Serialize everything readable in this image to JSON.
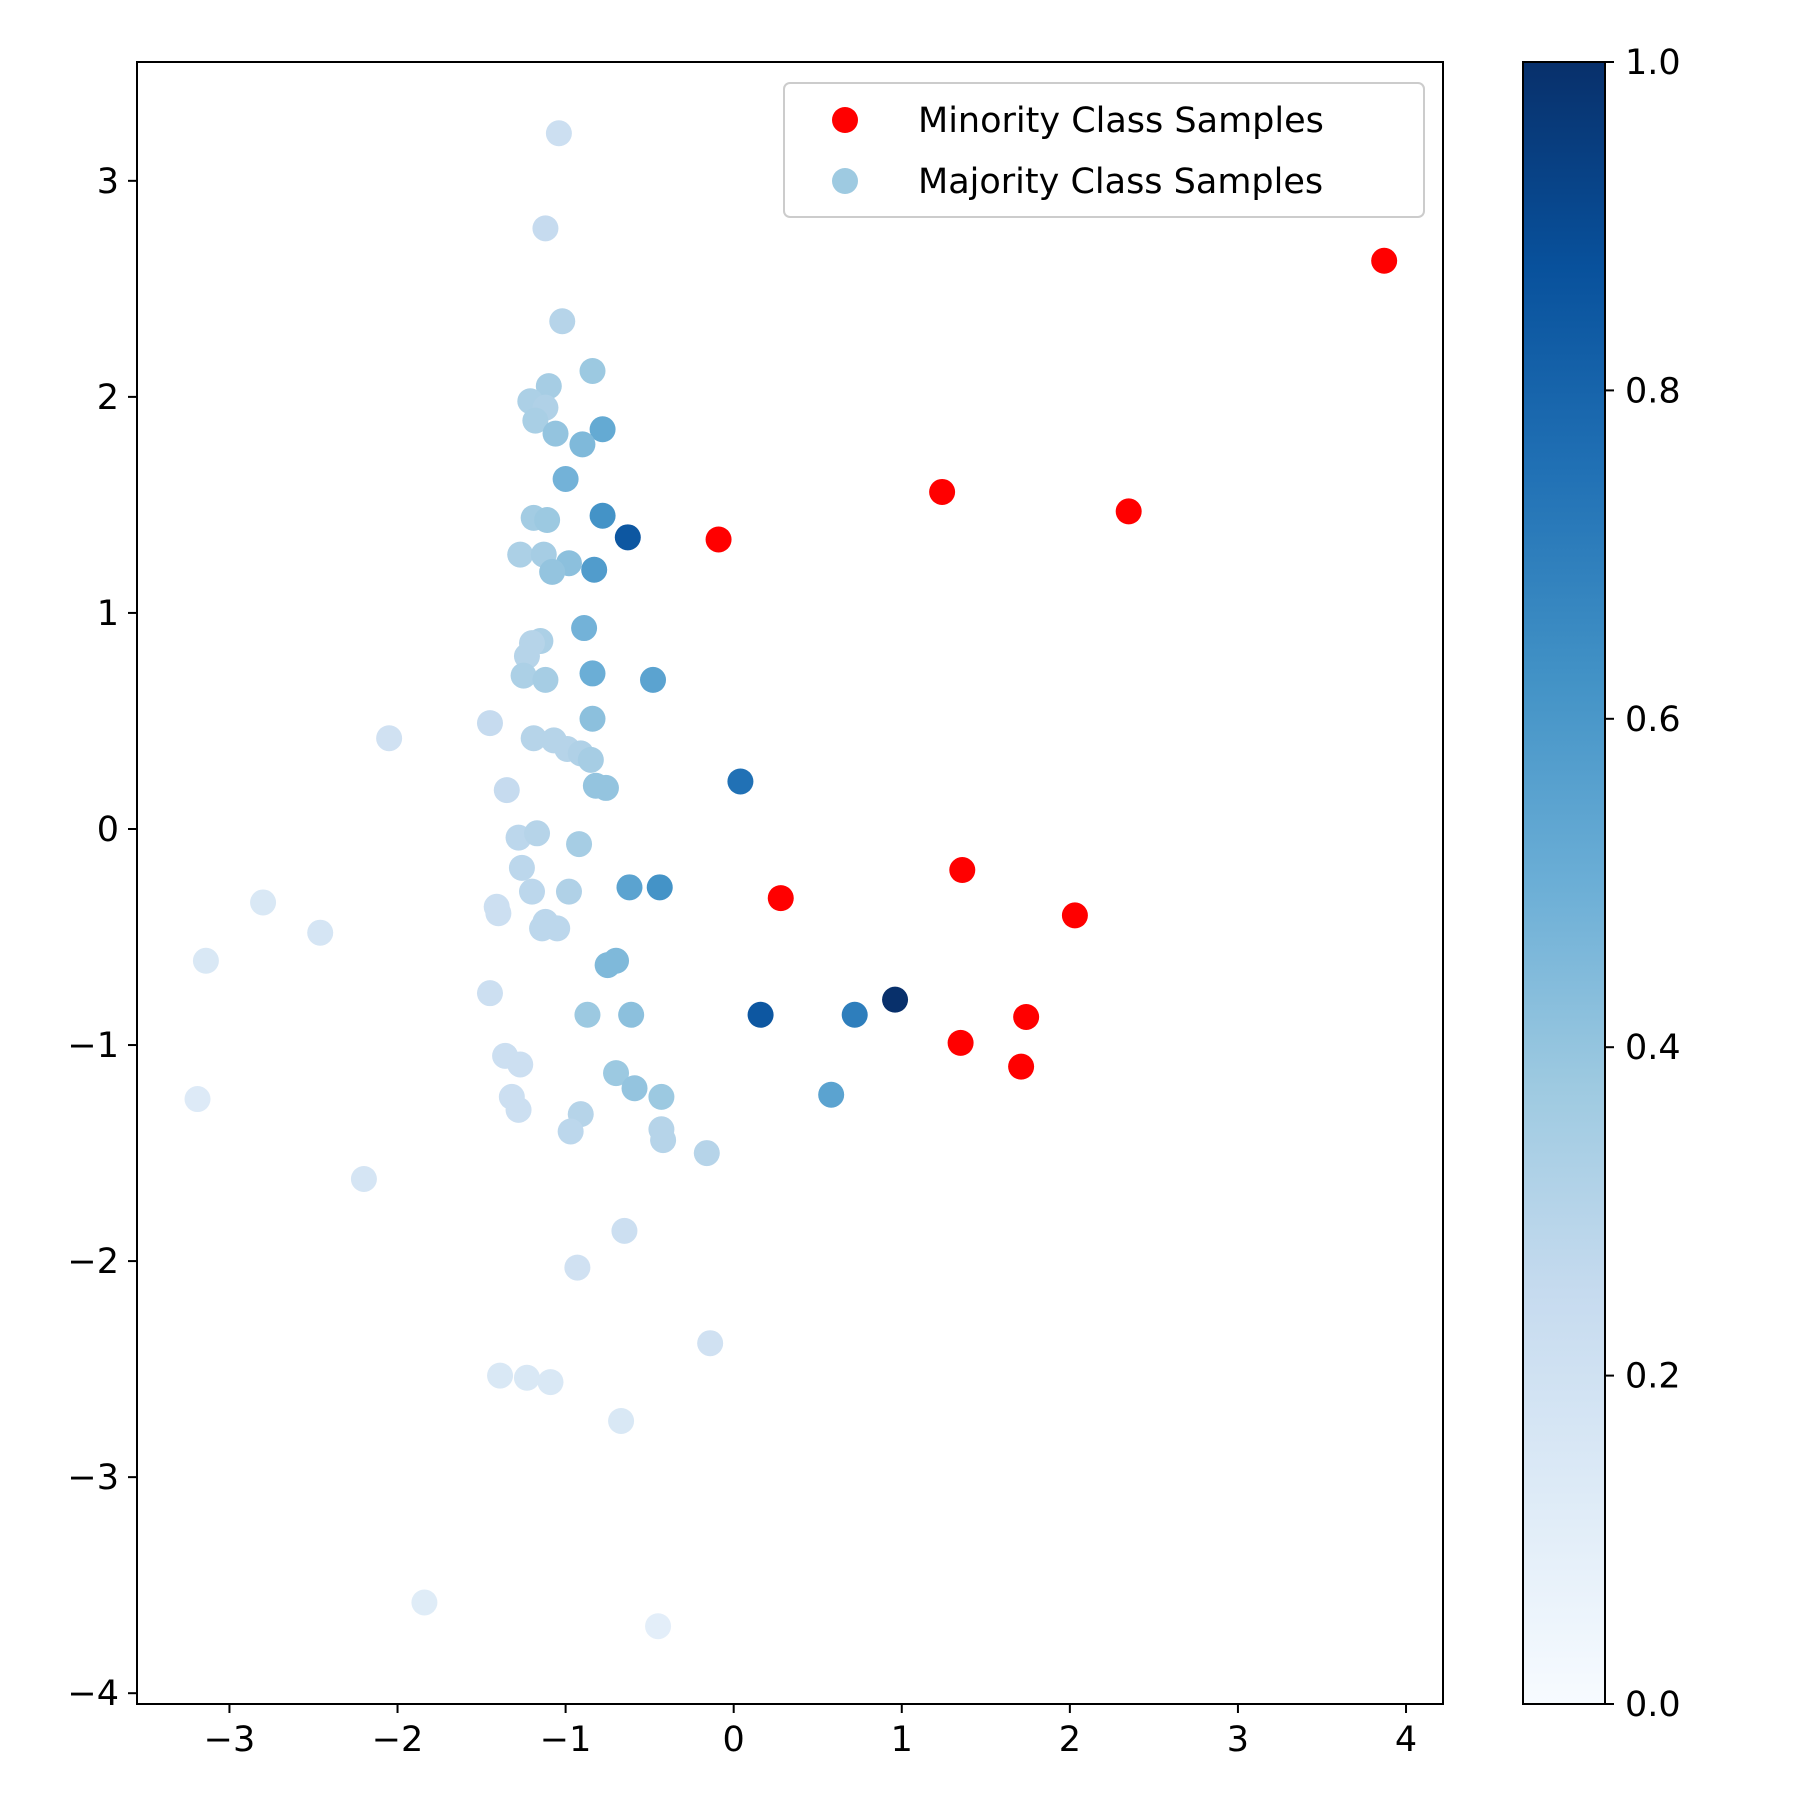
{
  "chart_data": {
    "type": "scatter",
    "title": "",
    "xlabel": "",
    "ylabel": "",
    "xlim": [
      -3.55,
      4.22
    ],
    "ylim": [
      -4.05,
      3.55
    ],
    "xticks": [
      -3,
      -2,
      -1,
      0,
      1,
      2,
      3,
      4
    ],
    "yticks": [
      -4,
      -3,
      -2,
      -1,
      0,
      1,
      2,
      3
    ],
    "xtick_labels": [
      "−3",
      "−2",
      "−1",
      "0",
      "1",
      "2",
      "3",
      "4"
    ],
    "ytick_labels": [
      "−4",
      "−3",
      "−2",
      "−1",
      "0",
      "1",
      "2",
      "3"
    ],
    "grid": false,
    "legend": {
      "placement": "upper right",
      "entries": [
        {
          "label": "Minority Class Samples",
          "color": "#ff0000"
        },
        {
          "label": "Majority Class Samples",
          "color": "#9ecae1"
        }
      ]
    },
    "colorbar": {
      "cmap": "Blues",
      "range": [
        0.0,
        1.0
      ],
      "ticks": [
        0.0,
        0.2,
        0.4,
        0.6,
        0.8,
        1.0
      ],
      "tick_labels": [
        "0.0",
        "0.2",
        "0.4",
        "0.6",
        "0.8",
        "1.0"
      ]
    },
    "series": [
      {
        "name": "Minority Class Samples",
        "color": "#ff0000",
        "points": [
          {
            "x": 3.87,
            "y": 2.63
          },
          {
            "x": 1.24,
            "y": 1.56
          },
          {
            "x": 2.35,
            "y": 1.47
          },
          {
            "x": -0.09,
            "y": 1.34
          },
          {
            "x": 1.36,
            "y": -0.19
          },
          {
            "x": 0.28,
            "y": -0.32
          },
          {
            "x": 2.03,
            "y": -0.4
          },
          {
            "x": 1.74,
            "y": -0.87
          },
          {
            "x": 1.35,
            "y": -0.99
          },
          {
            "x": 1.71,
            "y": -1.1
          }
        ]
      },
      {
        "name": "Majority Class Samples",
        "color": "#9ecae1",
        "points": [
          {
            "x": -1.04,
            "y": 3.22,
            "c": 0.22
          },
          {
            "x": -1.12,
            "y": 2.78,
            "c": 0.25
          },
          {
            "x": -1.02,
            "y": 2.35,
            "c": 0.3
          },
          {
            "x": -0.84,
            "y": 2.12,
            "c": 0.38
          },
          {
            "x": -1.1,
            "y": 2.05,
            "c": 0.35
          },
          {
            "x": -1.21,
            "y": 1.98,
            "c": 0.33
          },
          {
            "x": -1.12,
            "y": 1.95,
            "c": 0.32
          },
          {
            "x": -1.18,
            "y": 1.89,
            "c": 0.34
          },
          {
            "x": -1.06,
            "y": 1.83,
            "c": 0.4
          },
          {
            "x": -0.78,
            "y": 1.85,
            "c": 0.52
          },
          {
            "x": -0.9,
            "y": 1.78,
            "c": 0.45
          },
          {
            "x": -1.0,
            "y": 1.62,
            "c": 0.48
          },
          {
            "x": -0.78,
            "y": 1.45,
            "c": 0.62
          },
          {
            "x": -0.63,
            "y": 1.35,
            "c": 0.85
          },
          {
            "x": -1.19,
            "y": 1.44,
            "c": 0.36
          },
          {
            "x": -1.11,
            "y": 1.43,
            "c": 0.38
          },
          {
            "x": -1.27,
            "y": 1.27,
            "c": 0.33
          },
          {
            "x": -1.13,
            "y": 1.27,
            "c": 0.35
          },
          {
            "x": -0.98,
            "y": 1.23,
            "c": 0.42
          },
          {
            "x": -1.08,
            "y": 1.19,
            "c": 0.4
          },
          {
            "x": -0.83,
            "y": 1.2,
            "c": 0.58
          },
          {
            "x": -0.89,
            "y": 0.93,
            "c": 0.48
          },
          {
            "x": -1.15,
            "y": 0.87,
            "c": 0.33
          },
          {
            "x": -1.2,
            "y": 0.86,
            "c": 0.3
          },
          {
            "x": -1.23,
            "y": 0.8,
            "c": 0.3
          },
          {
            "x": -0.84,
            "y": 0.72,
            "c": 0.5
          },
          {
            "x": -0.48,
            "y": 0.69,
            "c": 0.55
          },
          {
            "x": -1.25,
            "y": 0.71,
            "c": 0.33
          },
          {
            "x": -1.12,
            "y": 0.69,
            "c": 0.35
          },
          {
            "x": -0.84,
            "y": 0.51,
            "c": 0.42
          },
          {
            "x": -1.45,
            "y": 0.49,
            "c": 0.25
          },
          {
            "x": -2.05,
            "y": 0.42,
            "c": 0.2
          },
          {
            "x": -1.19,
            "y": 0.42,
            "c": 0.3
          },
          {
            "x": -1.07,
            "y": 0.41,
            "c": 0.3
          },
          {
            "x": -0.99,
            "y": 0.37,
            "c": 0.3
          },
          {
            "x": -0.91,
            "y": 0.35,
            "c": 0.32
          },
          {
            "x": -0.85,
            "y": 0.32,
            "c": 0.35
          },
          {
            "x": 0.04,
            "y": 0.22,
            "c": 0.75
          },
          {
            "x": -0.82,
            "y": 0.2,
            "c": 0.4
          },
          {
            "x": -0.76,
            "y": 0.19,
            "c": 0.4
          },
          {
            "x": -1.35,
            "y": 0.18,
            "c": 0.25
          },
          {
            "x": -1.28,
            "y": -0.04,
            "c": 0.28
          },
          {
            "x": -1.17,
            "y": -0.02,
            "c": 0.3
          },
          {
            "x": -0.92,
            "y": -0.07,
            "c": 0.35
          },
          {
            "x": -1.26,
            "y": -0.18,
            "c": 0.28
          },
          {
            "x": -0.62,
            "y": -0.27,
            "c": 0.55
          },
          {
            "x": -0.44,
            "y": -0.27,
            "c": 0.62
          },
          {
            "x": -1.2,
            "y": -0.29,
            "c": 0.28
          },
          {
            "x": -0.98,
            "y": -0.29,
            "c": 0.32
          },
          {
            "x": -2.8,
            "y": -0.34,
            "c": 0.15
          },
          {
            "x": -1.41,
            "y": -0.36,
            "c": 0.22
          },
          {
            "x": -1.4,
            "y": -0.39,
            "c": 0.22
          },
          {
            "x": -1.12,
            "y": -0.43,
            "c": 0.28
          },
          {
            "x": -2.46,
            "y": -0.48,
            "c": 0.17
          },
          {
            "x": -1.14,
            "y": -0.46,
            "c": 0.28
          },
          {
            "x": -1.05,
            "y": -0.46,
            "c": 0.28
          },
          {
            "x": -3.14,
            "y": -0.61,
            "c": 0.15
          },
          {
            "x": -0.7,
            "y": -0.61,
            "c": 0.45
          },
          {
            "x": -0.75,
            "y": -0.63,
            "c": 0.45
          },
          {
            "x": -1.45,
            "y": -0.76,
            "c": 0.22
          },
          {
            "x": 0.96,
            "y": -0.79,
            "c": 1.0
          },
          {
            "x": -0.87,
            "y": -0.86,
            "c": 0.38
          },
          {
            "x": -0.61,
            "y": -0.86,
            "c": 0.42
          },
          {
            "x": 0.16,
            "y": -0.86,
            "c": 0.85
          },
          {
            "x": 0.72,
            "y": -0.86,
            "c": 0.7
          },
          {
            "x": -1.36,
            "y": -1.05,
            "c": 0.22
          },
          {
            "x": -1.27,
            "y": -1.09,
            "c": 0.22
          },
          {
            "x": -0.7,
            "y": -1.13,
            "c": 0.38
          },
          {
            "x": -0.59,
            "y": -1.2,
            "c": 0.4
          },
          {
            "x": 0.58,
            "y": -1.23,
            "c": 0.55
          },
          {
            "x": -0.43,
            "y": -1.24,
            "c": 0.38
          },
          {
            "x": -1.32,
            "y": -1.24,
            "c": 0.22
          },
          {
            "x": -3.19,
            "y": -1.25,
            "c": 0.13
          },
          {
            "x": -1.28,
            "y": -1.3,
            "c": 0.22
          },
          {
            "x": -0.91,
            "y": -1.32,
            "c": 0.3
          },
          {
            "x": -0.97,
            "y": -1.4,
            "c": 0.28
          },
          {
            "x": -0.43,
            "y": -1.39,
            "c": 0.3
          },
          {
            "x": -0.42,
            "y": -1.44,
            "c": 0.3
          },
          {
            "x": -0.16,
            "y": -1.5,
            "c": 0.3
          },
          {
            "x": -2.2,
            "y": -1.62,
            "c": 0.17
          },
          {
            "x": -0.65,
            "y": -1.86,
            "c": 0.22
          },
          {
            "x": -0.93,
            "y": -2.03,
            "c": 0.2
          },
          {
            "x": -0.14,
            "y": -2.38,
            "c": 0.2
          },
          {
            "x": -1.39,
            "y": -2.53,
            "c": 0.15
          },
          {
            "x": -1.23,
            "y": -2.54,
            "c": 0.15
          },
          {
            "x": -1.09,
            "y": -2.56,
            "c": 0.15
          },
          {
            "x": -0.67,
            "y": -2.74,
            "c": 0.15
          },
          {
            "x": -1.84,
            "y": -3.58,
            "c": 0.12
          },
          {
            "x": -0.45,
            "y": -3.69,
            "c": 0.1
          }
        ]
      }
    ]
  }
}
